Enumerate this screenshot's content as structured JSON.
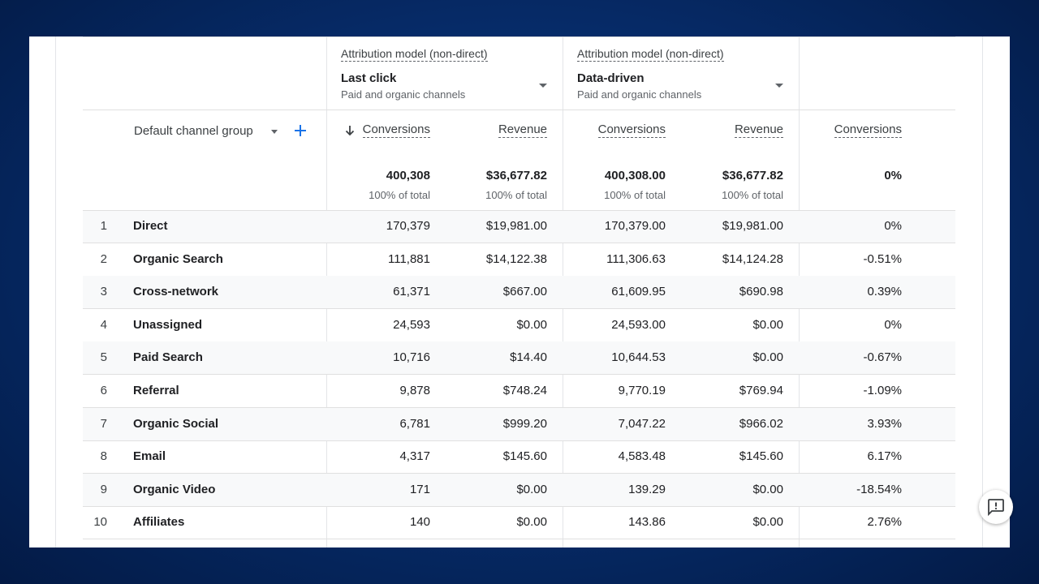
{
  "attribution_label": "Attribution model (non-direct)",
  "model_a": {
    "name": "Last click",
    "sub": "Paid and organic channels"
  },
  "model_b": {
    "name": "Data-driven",
    "sub": "Paid and organic channels"
  },
  "dimension": {
    "label": "Default channel group"
  },
  "columns": {
    "a_conversions": "Conversions",
    "a_revenue": "Revenue",
    "b_conversions": "Conversions",
    "b_revenue": "Revenue",
    "change_conversions": "Conversions"
  },
  "totals": {
    "a_conversions": "400,308",
    "a_revenue": "$36,677.82",
    "b_conversions": "400,308.00",
    "b_revenue": "$36,677.82",
    "change": "0%",
    "pct_label": "100% of total"
  },
  "rows": [
    {
      "rank": "1",
      "channel": "Direct",
      "a_conv": "170,379",
      "a_rev": "$19,981.00",
      "b_conv": "170,379.00",
      "b_rev": "$19,981.00",
      "change": "0%"
    },
    {
      "rank": "2",
      "channel": "Organic Search",
      "a_conv": "111,881",
      "a_rev": "$14,122.38",
      "b_conv": "111,306.63",
      "b_rev": "$14,124.28",
      "change": "-0.51%"
    },
    {
      "rank": "3",
      "channel": "Cross-network",
      "a_conv": "61,371",
      "a_rev": "$667.00",
      "b_conv": "61,609.95",
      "b_rev": "$690.98",
      "change": "0.39%"
    },
    {
      "rank": "4",
      "channel": "Unassigned",
      "a_conv": "24,593",
      "a_rev": "$0.00",
      "b_conv": "24,593.00",
      "b_rev": "$0.00",
      "change": "0%"
    },
    {
      "rank": "5",
      "channel": "Paid Search",
      "a_conv": "10,716",
      "a_rev": "$14.40",
      "b_conv": "10,644.53",
      "b_rev": "$0.00",
      "change": "-0.67%"
    },
    {
      "rank": "6",
      "channel": "Referral",
      "a_conv": "9,878",
      "a_rev": "$748.24",
      "b_conv": "9,770.19",
      "b_rev": "$769.94",
      "change": "-1.09%"
    },
    {
      "rank": "7",
      "channel": "Organic Social",
      "a_conv": "6,781",
      "a_rev": "$999.20",
      "b_conv": "7,047.22",
      "b_rev": "$966.02",
      "change": "3.93%"
    },
    {
      "rank": "8",
      "channel": "Email",
      "a_conv": "4,317",
      "a_rev": "$145.60",
      "b_conv": "4,583.48",
      "b_rev": "$145.60",
      "change": "6.17%"
    },
    {
      "rank": "9",
      "channel": "Organic Video",
      "a_conv": "171",
      "a_rev": "$0.00",
      "b_conv": "139.29",
      "b_rev": "$0.00",
      "change": "-18.54%"
    },
    {
      "rank": "10",
      "channel": "Affiliates",
      "a_conv": "140",
      "a_rev": "$0.00",
      "b_conv": "143.86",
      "b_rev": "$0.00",
      "change": "2.76%"
    }
  ],
  "icons": {
    "sort": "arrow-down-icon",
    "add": "plus-icon",
    "dropdown": "caret-down-icon",
    "feedback": "feedback-icon"
  },
  "colors": {
    "accent": "#1a73e8",
    "background": "#062a66",
    "row_shade": "#f8f9fa"
  }
}
